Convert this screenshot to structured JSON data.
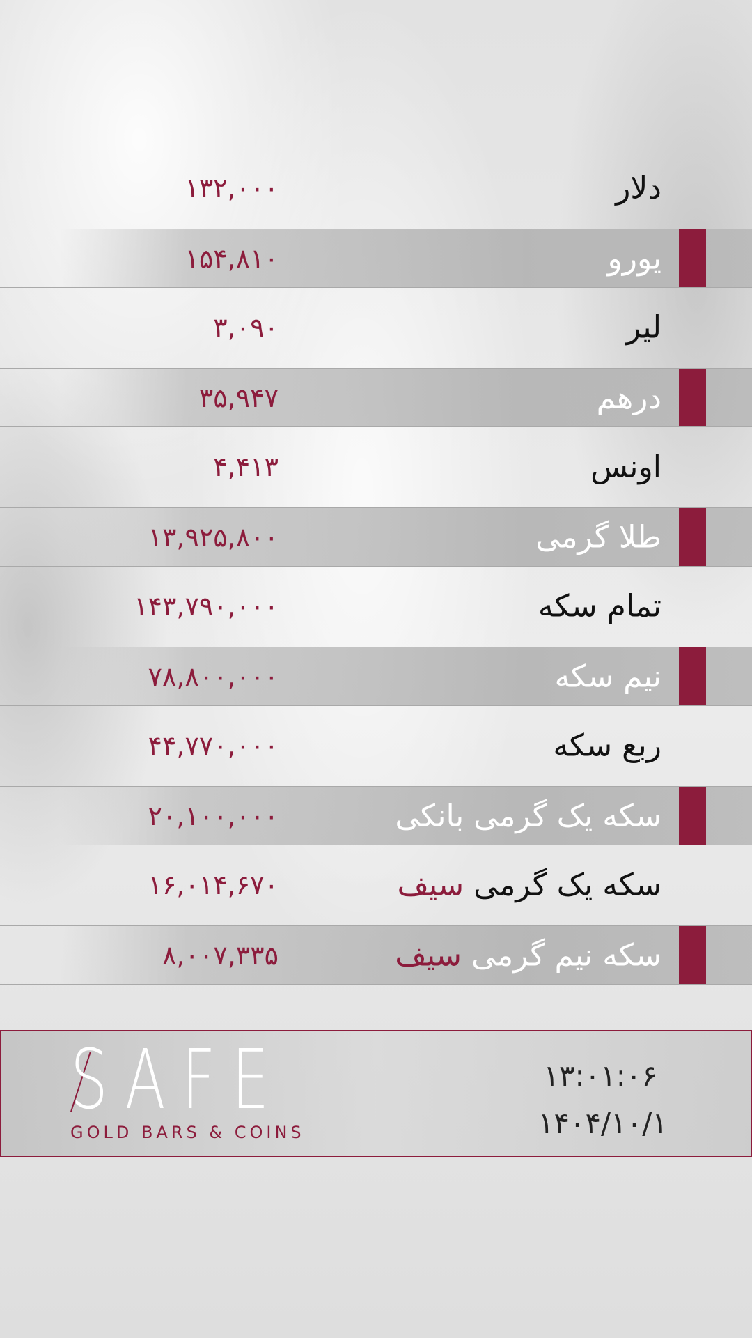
{
  "colors": {
    "accent": "#8c1c3c"
  },
  "rates": [
    {
      "label": "دلار",
      "value": "۱۳۲,۰۰۰"
    },
    {
      "label": "یورو",
      "value": "۱۵۴,۸۱۰"
    },
    {
      "label": "لیر",
      "value": "۳,۰۹۰"
    },
    {
      "label": "درهم",
      "value": "۳۵,۹۴۷"
    },
    {
      "label": "اونس",
      "value": "۴,۴۱۳"
    },
    {
      "label": "طلا گرمی",
      "value": "۱۳,۹۲۵,۸۰۰"
    },
    {
      "label": "تمام سکه",
      "value": "۱۴۳,۷۹۰,۰۰۰"
    },
    {
      "label": "نیم سکه",
      "value": "۷۸,۸۰۰,۰۰۰"
    },
    {
      "label": "ربع سکه",
      "value": "۴۴,۷۷۰,۰۰۰"
    },
    {
      "label": "سکه یک گرمی بانکی",
      "value": "۲۰,۱۰۰,۰۰۰"
    },
    {
      "label": "سکه یک گرمی",
      "label_accent": "سیف",
      "value": "۱۶,۰۱۴,۶۷۰"
    },
    {
      "label": "سکه نیم گرمی",
      "label_accent": "سیف",
      "value": "۸,۰۰۷,۳۳۵"
    }
  ],
  "footer": {
    "logo": "SAFE",
    "logo_sub": "GOLD BARS & COINS",
    "time": "۱۳:۰۱:۰۶",
    "date": "۱۴۰۴/۱۰/۱"
  }
}
